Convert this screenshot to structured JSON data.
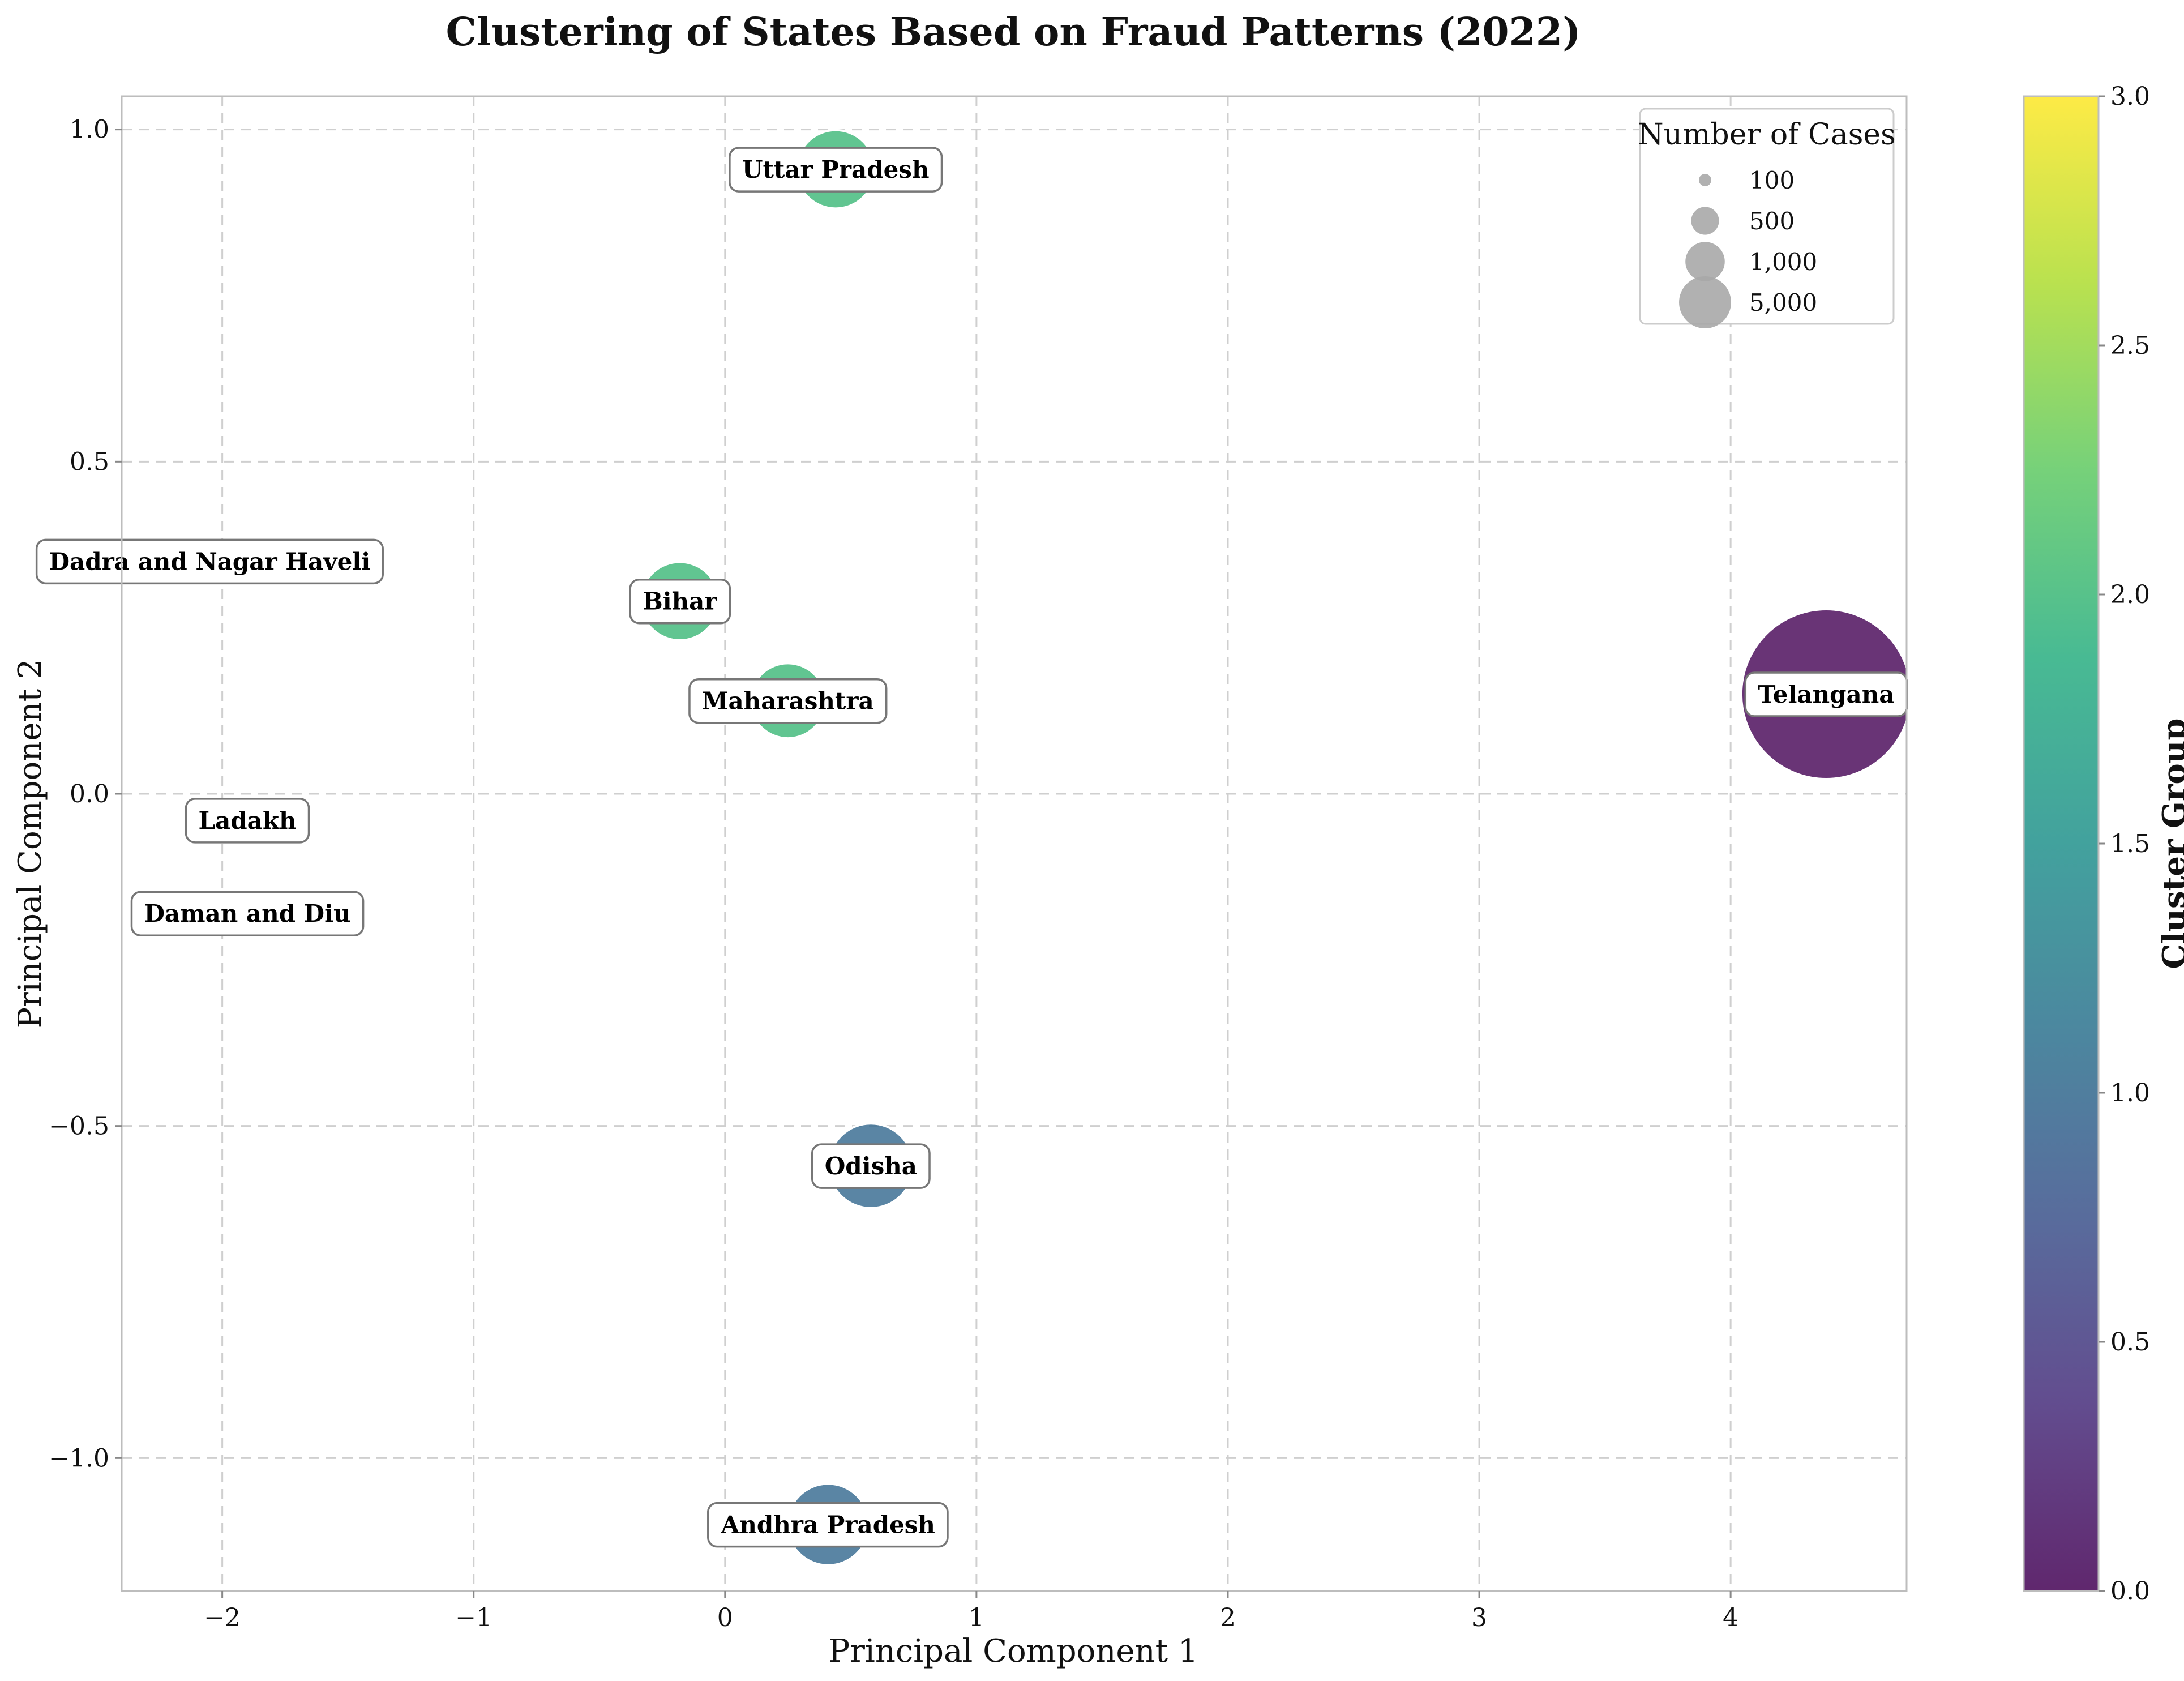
{
  "chart_data": {
    "type": "scatter",
    "title": "Clustering of States Based on Fraud Patterns (2022)",
    "xlabel": "Principal Component 1",
    "ylabel": "Principal Component 2",
    "xlim": [
      -2.4,
      4.7
    ],
    "ylim": [
      -1.2,
      1.05
    ],
    "xticks": [
      -2,
      -1,
      0,
      1,
      2,
      3,
      4
    ],
    "yticks": [
      -1.0,
      -0.5,
      0.0,
      0.5,
      1.0
    ],
    "xtick_labels": [
      "−2",
      "−1",
      "0",
      "1",
      "2",
      "3",
      "4"
    ],
    "ytick_labels": [
      "−1.0",
      "−0.5",
      "0.0",
      "0.5",
      "1.0"
    ],
    "grid": true,
    "points": [
      {
        "label": "Uttar Pradesh",
        "x": 0.44,
        "y": 0.94,
        "cluster": 2,
        "cases": 1200
      },
      {
        "label": "Dadra and Nagar Haveli",
        "x": -2.05,
        "y": 0.35,
        "cluster": 3,
        "cases": 100
      },
      {
        "label": "Bihar",
        "x": -0.18,
        "y": 0.29,
        "cluster": 2,
        "cases": 1200
      },
      {
        "label": "Maharashtra",
        "x": 0.25,
        "y": 0.14,
        "cluster": 2,
        "cases": 1100
      },
      {
        "label": "Telangana",
        "x": 4.38,
        "y": 0.15,
        "cluster": 0,
        "cases": 6500
      },
      {
        "label": "Ladakh",
        "x": -1.9,
        "y": -0.04,
        "cluster": 3,
        "cases": 80
      },
      {
        "label": "Daman and Diu",
        "x": -1.9,
        "y": -0.18,
        "cluster": 3,
        "cases": 150
      },
      {
        "label": "Odisha",
        "x": 0.58,
        "y": -0.56,
        "cluster": 1,
        "cases": 1400
      },
      {
        "label": "Andhra Pradesh",
        "x": 0.41,
        "y": -1.1,
        "cluster": 1,
        "cases": 1300
      }
    ],
    "size_legend": {
      "title": "Number of Cases",
      "placement": "top-right",
      "entries": [
        {
          "label": "100",
          "value": 100
        },
        {
          "label": "500",
          "value": 500
        },
        {
          "label": "1,000",
          "value": 1000
        },
        {
          "label": "5,000",
          "value": 5000
        }
      ]
    },
    "colorbar": {
      "label": "Cluster Group",
      "range": [
        0.0,
        3.0
      ],
      "ticks": [
        0.0,
        0.5,
        1.0,
        1.5,
        2.0,
        2.5,
        3.0
      ],
      "tick_labels": [
        "0.0",
        "0.5",
        "1.0",
        "1.5",
        "2.0",
        "2.5",
        "3.0"
      ],
      "colormap": "viridis"
    }
  }
}
